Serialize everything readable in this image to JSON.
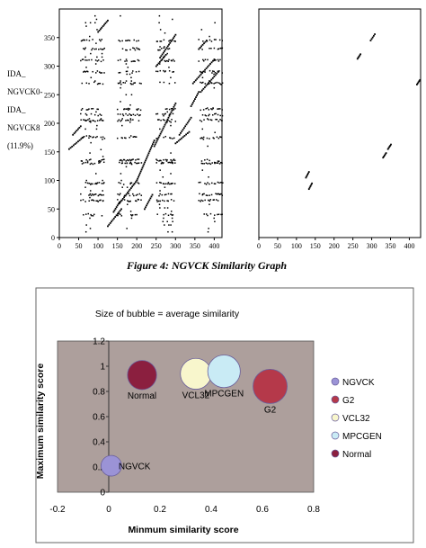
{
  "side_label": {
    "lines": [
      "IDA_",
      "NGVCK0-",
      "IDA_",
      "NGVCK8",
      "(11.9%)"
    ]
  },
  "figure_caption": "Figure 4: NGVCK Similarity Graph",
  "chart_data": [
    {
      "type": "scatter",
      "title": "",
      "xlim": [
        0,
        420
      ],
      "ylim": [
        0,
        400
      ],
      "x_ticks": [
        0,
        50,
        100,
        150,
        200,
        250,
        300,
        350,
        400
      ],
      "y_ticks": [
        0,
        50,
        100,
        150,
        200,
        250,
        300,
        350
      ],
      "grid": false,
      "series": [
        {
          "segments": [
            [
              [
                125,
                20
              ],
              [
                160,
                50
              ]
            ],
            [
              [
                140,
                45
              ],
              [
                155,
                62
              ]
            ],
            [
              [
                155,
                60
              ],
              [
                200,
                100
              ]
            ],
            [
              [
                200,
                100
              ],
              [
                245,
                170
              ]
            ],
            [
              [
                245,
                160
              ],
              [
                300,
                235
              ]
            ],
            [
              [
                250,
                300
              ],
              [
                275,
                320
              ]
            ],
            [
              [
                260,
                315
              ],
              [
                300,
                355
              ]
            ],
            [
              [
                300,
                165
              ],
              [
                335,
                185
              ]
            ],
            [
              [
                310,
                180
              ],
              [
                340,
                210
              ]
            ],
            [
              [
                340,
                230
              ],
              [
                360,
                255
              ]
            ],
            [
              [
                345,
                270
              ],
              [
                400,
                312
              ]
            ],
            [
              [
                365,
                255
              ],
              [
                410,
                290
              ]
            ],
            [
              [
                360,
                330
              ],
              [
                380,
                345
              ]
            ],
            [
              [
                100,
                360
              ],
              [
                125,
                380
              ]
            ],
            [
              [
                25,
                155
              ],
              [
                60,
                175
              ]
            ],
            [
              [
                35,
                180
              ],
              [
                55,
                195
              ]
            ],
            [
              [
                220,
                50
              ],
              [
                240,
                75
              ]
            ]
          ],
          "bands_y": [
            345,
            330,
            310,
            290,
            270,
            225,
            215,
            205,
            175,
            135,
            130,
            95,
            75,
            65,
            40
          ],
          "bands_x": [
            [
              55,
              115
            ],
            [
              150,
              210
            ],
            [
              250,
              300
            ],
            [
              360,
              420
            ]
          ]
        }
      ]
    },
    {
      "type": "scatter",
      "title": "",
      "xlim": [
        0,
        430
      ],
      "ylim": [
        0,
        400
      ],
      "x_ticks": [
        0,
        50,
        100,
        150,
        200,
        250,
        300,
        350,
        400
      ],
      "grid": false,
      "series": [
        {
          "segments": [
            [
              [
                125,
                105
              ],
              [
                133,
                115
              ]
            ],
            [
              [
                133,
                85
              ],
              [
                141,
                95
              ]
            ],
            [
              [
                262,
                313
              ],
              [
                270,
                321
              ]
            ],
            [
              [
                297,
                345
              ],
              [
                308,
                356
              ]
            ],
            [
              [
                330,
                140
              ],
              [
                338,
                148
              ]
            ],
            [
              [
                343,
                155
              ],
              [
                351,
                163
              ]
            ],
            [
              [
                420,
                268
              ],
              [
                428,
                276
              ]
            ]
          ]
        }
      ]
    },
    {
      "type": "scatter",
      "title": "Size of bubble = average similarity",
      "xlabel": "Minmum similarity score",
      "ylabel": "Maximum similarity score",
      "xlim": [
        -0.2,
        0.8
      ],
      "ylim": [
        0,
        1.2
      ],
      "x_ticks": [
        "-0.2",
        "0",
        "0.2",
        "0.4",
        "0.6",
        "0.8"
      ],
      "y_ticks": [
        "0",
        "0.2",
        "0.4",
        "0.6",
        "0.8",
        "1",
        "1.2"
      ],
      "legend_position": "right",
      "series": [
        {
          "name": "NGVCK",
          "x": 0.01,
          "y": 0.21,
          "size": 0.2,
          "color": "#9b93d6",
          "label": "NGVCK"
        },
        {
          "name": "G2",
          "x": 0.63,
          "y": 0.84,
          "size": 0.55,
          "color": "#b5394a",
          "label": "G2"
        },
        {
          "name": "VCL32",
          "x": 0.34,
          "y": 0.94,
          "size": 0.45,
          "color": "#f8f6cc",
          "label": "VCL32"
        },
        {
          "name": "MPCGEN",
          "x": 0.45,
          "y": 0.96,
          "size": 0.5,
          "color": "#c9ebf5",
          "label": "MPCGEN"
        },
        {
          "name": "Normal",
          "x": 0.13,
          "y": 0.93,
          "size": 0.4,
          "color": "#8b1f3f",
          "label": "Normal"
        }
      ],
      "plot_bg": "#ad9f9c"
    }
  ]
}
